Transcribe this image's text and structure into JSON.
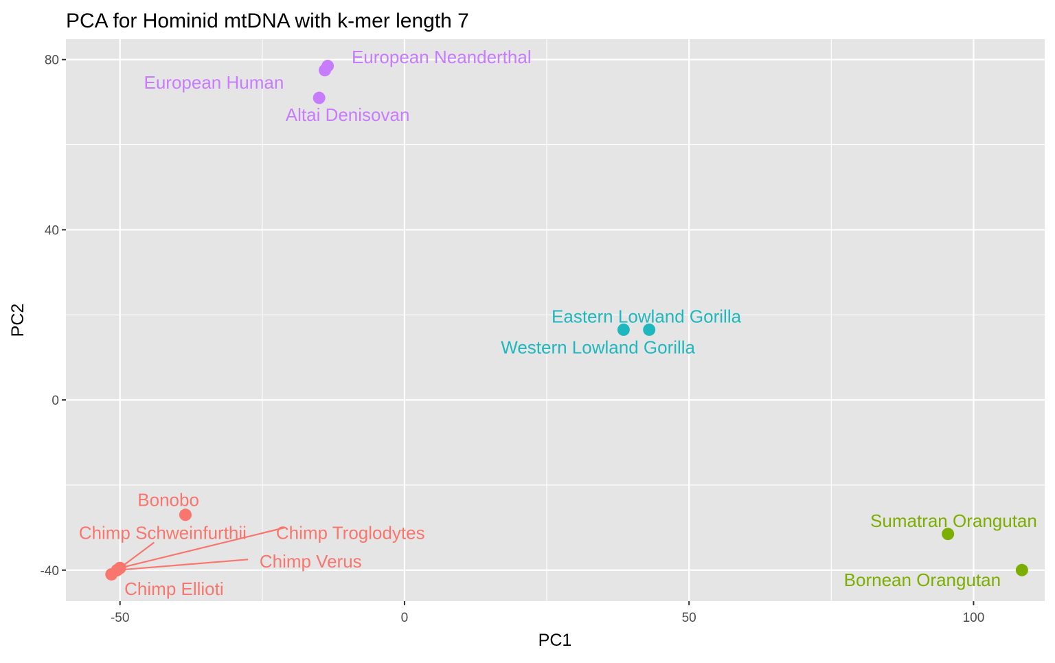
{
  "chart_data": {
    "type": "scatter",
    "title": "PCA for Hominid mtDNA with k-mer length 7",
    "xlabel": "PC1",
    "ylabel": "PC2",
    "xlim": [
      -59.5,
      112.5
    ],
    "ylim": [
      -47.3,
      84.8
    ],
    "x_ticks": [
      -50,
      0,
      50,
      100
    ],
    "x_minor_ticks": [
      -25,
      25,
      75
    ],
    "y_ticks": [
      -40,
      0,
      40,
      80
    ],
    "y_minor_ticks": [
      -20,
      20,
      60
    ],
    "x_tick_labels": [
      "-50",
      "0",
      "50",
      "100"
    ],
    "y_tick_labels": [
      "-40",
      "0",
      "40",
      "80"
    ],
    "grid": true,
    "legend": "none",
    "colors": {
      "chimp": "#F8766D",
      "gorilla": "#1FB7BE",
      "human": "#C77CFF",
      "orangutan": "#7CAE00",
      "panel": "#E5E5E5",
      "grid": "#FFFFFF",
      "tick": "#333333"
    },
    "points": [
      {
        "name": "European Neanderthal",
        "group": "human",
        "x": -13.5,
        "y": 78.5,
        "label_x": 6.5,
        "label_y": 80.6,
        "anchor": "middle",
        "leader": false
      },
      {
        "name": "European Human",
        "group": "human",
        "x": -14.0,
        "y": 77.5,
        "label_x": -33.5,
        "label_y": 74.6,
        "anchor": "middle",
        "leader": false
      },
      {
        "name": "Altai Denisovan",
        "group": "human",
        "x": -15.0,
        "y": 71.0,
        "label_x": -10.0,
        "label_y": 67.0,
        "anchor": "middle",
        "leader": false
      },
      {
        "name": "Eastern Lowland Gorilla",
        "group": "gorilla",
        "x": 38.5,
        "y": 16.5,
        "label_x": 42.5,
        "label_y": 19.6,
        "anchor": "middle",
        "leader": false
      },
      {
        "name": "Western Lowland Gorilla",
        "group": "gorilla",
        "x": 43.0,
        "y": 16.5,
        "label_x": 34.0,
        "label_y": 12.4,
        "anchor": "middle",
        "leader": false
      },
      {
        "name": "Bonobo",
        "group": "chimp",
        "x": -38.5,
        "y": -27.0,
        "label_x": -41.5,
        "label_y": -23.5,
        "anchor": "middle",
        "leader": false
      },
      {
        "name": "Chimp Schweinfurthii",
        "group": "chimp",
        "x": -50.5,
        "y": -40.0,
        "label_x": -42.5,
        "label_y": -31.2,
        "anchor": "middle",
        "leader": true,
        "leader_end_x": -44.0,
        "leader_end_y": -33.5
      },
      {
        "name": "Chimp Troglodytes",
        "group": "chimp",
        "x": -50.0,
        "y": -39.5,
        "label_x": -9.5,
        "label_y": -31.2,
        "anchor": "middle",
        "leader": true,
        "leader_end_x": -21.0,
        "leader_end_y": -30.0
      },
      {
        "name": "Chimp Verus",
        "group": "chimp",
        "x": -50.5,
        "y": -40.0,
        "label_x": -16.5,
        "label_y": -37.9,
        "anchor": "middle",
        "leader": true,
        "leader_end_x": -27.5,
        "leader_end_y": -37.5
      },
      {
        "name": "Chimp Ellioti",
        "group": "chimp",
        "x": -51.5,
        "y": -41.0,
        "label_x": -40.5,
        "label_y": -44.4,
        "anchor": "middle",
        "leader": false
      },
      {
        "name": "Sumatran Orangutan",
        "group": "orangutan",
        "x": 95.5,
        "y": -31.5,
        "label_x": 96.5,
        "label_y": -28.4,
        "anchor": "middle",
        "leader": false
      },
      {
        "name": "Bornean Orangutan",
        "group": "orangutan",
        "x": 108.5,
        "y": -40.0,
        "label_x": 91.0,
        "label_y": -42.3,
        "anchor": "middle",
        "leader": false
      }
    ]
  }
}
